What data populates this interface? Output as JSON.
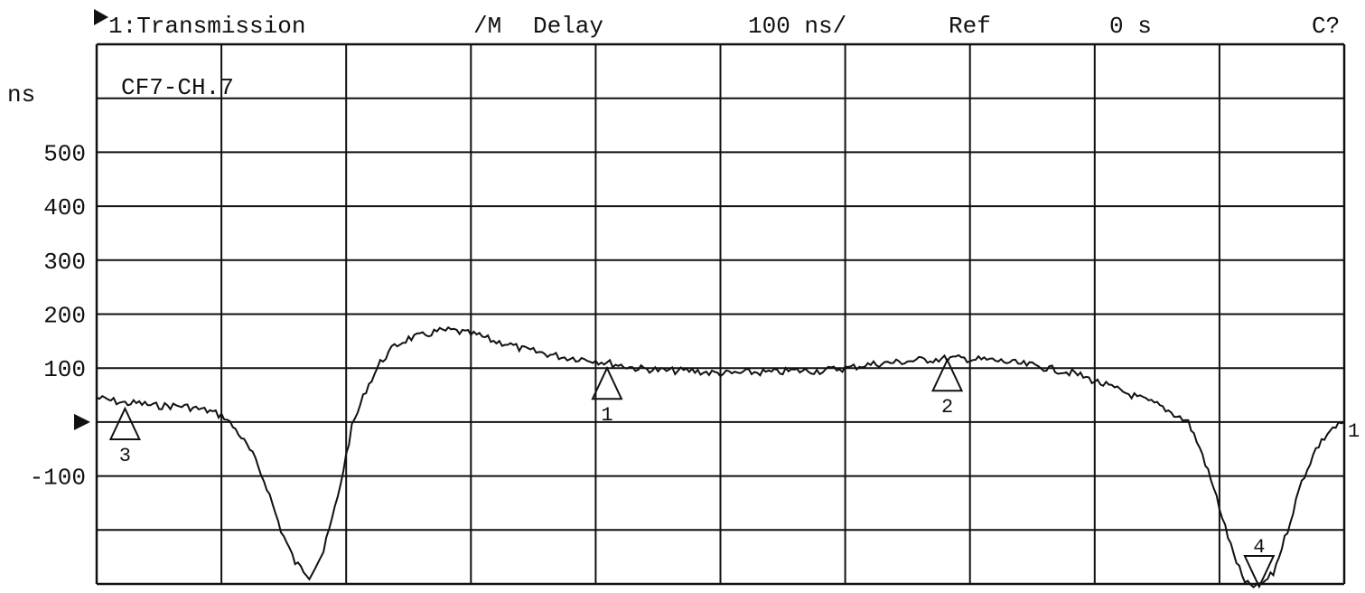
{
  "header": {
    "channel_label": "1:Transmission",
    "format_label": "/M",
    "format_value": "Delay",
    "scale_label": "100 ns/",
    "ref_label": "Ref",
    "ref_value": "0 s",
    "cal_status": "C?"
  },
  "trace_name": "CF7-CH.7",
  "colors": {
    "trace": "#111111",
    "grid": "#111111",
    "background": "#ffffff"
  },
  "icons": {
    "active_trace": "triangle-right-icon",
    "ref_pointer": "triangle-right-icon"
  },
  "chart_data": {
    "type": "line",
    "title": "1:Transmission",
    "xlabel": "",
    "ylabel": "ns",
    "grid": true,
    "grid_divisions": {
      "x": 10,
      "y": 10
    },
    "ylim": [
      -300,
      700
    ],
    "yticks": [
      {
        "value": 500,
        "label": "500"
      },
      {
        "value": 400,
        "label": "400"
      },
      {
        "value": 300,
        "label": "300"
      },
      {
        "value": 200,
        "label": "200"
      },
      {
        "value": 100,
        "label": "100"
      },
      {
        "value": -100,
        "label": "-100"
      }
    ],
    "unit_label": "ns",
    "reference_value": 0,
    "trace_end_label": "1",
    "series": [
      {
        "values": [
          45,
          40,
          35,
          35,
          30,
          30,
          30,
          25,
          20,
          10,
          -20,
          -60,
          -120,
          -200,
          -260,
          -285,
          -240,
          -140,
          -10,
          60,
          110,
          140,
          155,
          160,
          168,
          170,
          165,
          160,
          150,
          145,
          135,
          130,
          125,
          120,
          118,
          115,
          110,
          105,
          100,
          98,
          95,
          95,
          95,
          92,
          90,
          90,
          92,
          92,
          92,
          95,
          95,
          95,
          98,
          100,
          105,
          108,
          110,
          112,
          115,
          116,
          118,
          118,
          116,
          115,
          112,
          108,
          105,
          100,
          95,
          90,
          80,
          70,
          60,
          50,
          40,
          30,
          15,
          0,
          -60,
          -140,
          -230,
          -300,
          -305,
          -280,
          -200,
          -110,
          -50,
          -15,
          0
        ]
      }
    ],
    "markers": [
      {
        "label": "1",
        "value": 100,
        "type": "up"
      },
      {
        "label": "2",
        "value": 115,
        "type": "up"
      },
      {
        "label": "3",
        "value": 25,
        "type": "up"
      },
      {
        "label": "4",
        "value": -305,
        "type": "down"
      }
    ]
  }
}
